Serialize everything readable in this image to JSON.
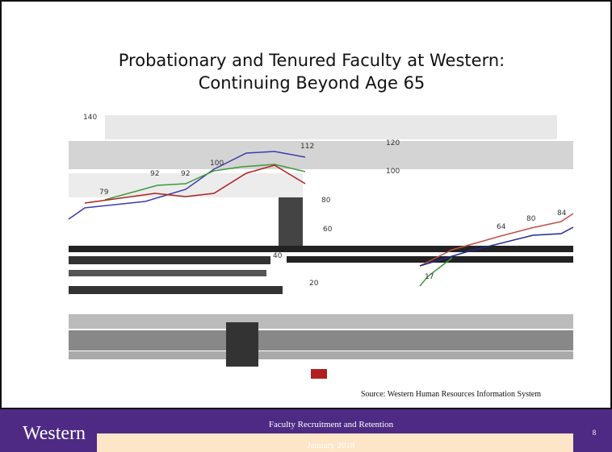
{
  "slide": {
    "title": [
      "Probationary and Tenured Faculty at Western:",
      "Continuing Beyond Age 65"
    ],
    "chart_fragments": {
      "axis_labels": [
        "140",
        "120",
        "100",
        "80",
        "60",
        "40",
        "20"
      ],
      "data_labels": [
        "79",
        "92",
        "92",
        "100",
        "112",
        "64",
        "80",
        "84",
        "17"
      ]
    },
    "source": "Source: Western Human Resources Information System",
    "footer": {
      "logo": "Western",
      "title": "Faculty Recruitment and Retention",
      "date": "January 2018",
      "page": "8"
    }
  }
}
